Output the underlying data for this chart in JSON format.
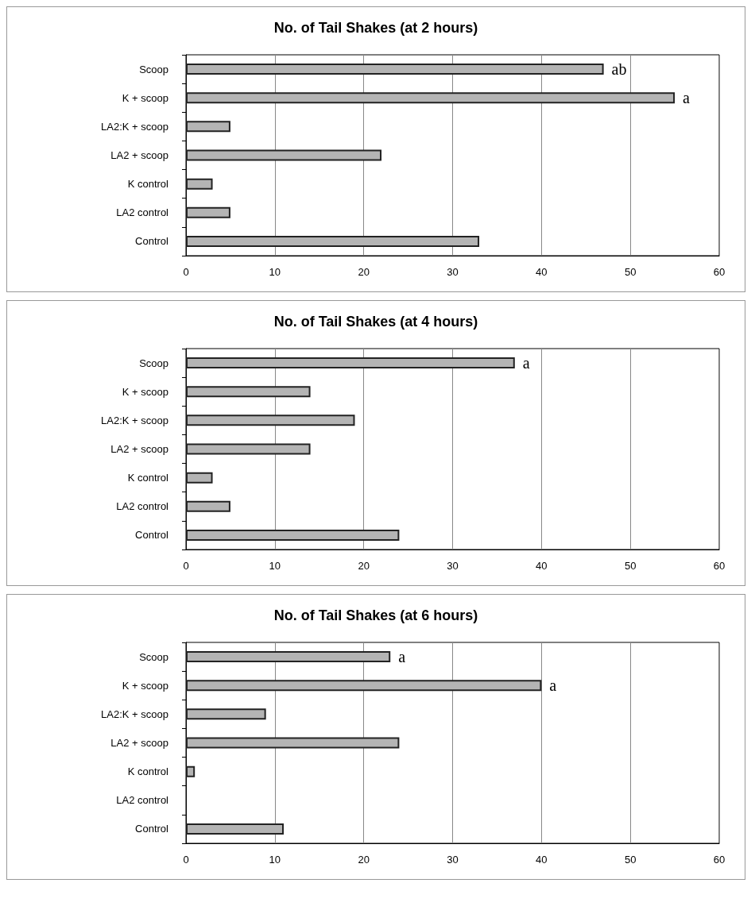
{
  "chart_data": [
    {
      "type": "bar",
      "orientation": "horizontal",
      "title": "No. of Tail Shakes (at 2 hours)",
      "categories": [
        "Scoop",
        "K + scoop",
        "LA2:K + scoop",
        "LA2 + scoop",
        "K control",
        "LA2 control",
        "Control"
      ],
      "values": [
        47,
        55,
        5,
        22,
        3,
        5,
        33
      ],
      "color": "#b4b4b4",
      "xlim": [
        0,
        60
      ],
      "xticks": [
        0,
        10,
        20,
        30,
        40,
        50,
        60
      ],
      "grid": "x",
      "annotations": [
        {
          "text": "ab",
          "x": 47,
          "y": "Scoop"
        },
        {
          "text": "a",
          "x": 55,
          "y": "K + scoop"
        }
      ]
    },
    {
      "type": "bar",
      "orientation": "horizontal",
      "title": "No. of Tail Shakes (at 4 hours)",
      "categories": [
        "Scoop",
        "K + scoop",
        "LA2:K + scoop",
        "LA2 + scoop",
        "K control",
        "LA2 control",
        "Control"
      ],
      "values": [
        37,
        14,
        19,
        14,
        3,
        5,
        24
      ],
      "color": "#b4b4b4",
      "xlim": [
        0,
        60
      ],
      "xticks": [
        0,
        10,
        20,
        30,
        40,
        50,
        60
      ],
      "grid": "x",
      "annotations": [
        {
          "text": "a",
          "x": 37,
          "y": "Scoop"
        }
      ]
    },
    {
      "type": "bar",
      "orientation": "horizontal",
      "title": "No. of Tail Shakes (at 6 hours)",
      "categories": [
        "Scoop",
        "K + scoop",
        "LA2:K + scoop",
        "LA2 + scoop",
        "K control",
        "LA2 control",
        "Control"
      ],
      "values": [
        23,
        40,
        9,
        24,
        1,
        0,
        11
      ],
      "color": "#b4b4b4",
      "xlim": [
        0,
        60
      ],
      "xticks": [
        0,
        10,
        20,
        30,
        40,
        50,
        60
      ],
      "grid": "x",
      "annotations": [
        {
          "text": "a",
          "x": 23,
          "y": "Scoop"
        },
        {
          "text": "a",
          "x": 40,
          "y": "K + scoop"
        }
      ]
    }
  ]
}
